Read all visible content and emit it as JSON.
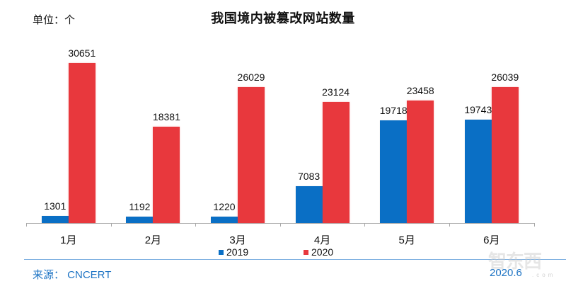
{
  "header": {
    "unit_label": "单位：个",
    "title": "我国境内被篡改网站数量"
  },
  "footer": {
    "source": "来源： CNCERT",
    "date": "2020.6",
    "watermark": "智东西",
    "watermark_sub": ".com"
  },
  "colors": {
    "series_2019": "#0a6fc5",
    "series_2020": "#e8383d",
    "footer_text": "#1e74c4",
    "footer_line": "#7aaee0"
  },
  "legend": [
    {
      "name": "2019",
      "color": "#0a6fc5"
    },
    {
      "name": "2020",
      "color": "#e8383d"
    }
  ],
  "chart_data": {
    "type": "bar",
    "title": "我国境内被篡改网站数量",
    "subtitle": "单位：个",
    "xlabel": "",
    "ylabel": "",
    "categories": [
      "1月",
      "2月",
      "3月",
      "4月",
      "5月",
      "6月"
    ],
    "series": [
      {
        "name": "2019",
        "color": "#0a6fc5",
        "values": [
          1301,
          1192,
          1220,
          7083,
          19718,
          19743
        ]
      },
      {
        "name": "2020",
        "color": "#e8383d",
        "values": [
          30651,
          18381,
          26029,
          23124,
          23458,
          26039
        ]
      }
    ],
    "ylim": [
      0,
      30651
    ],
    "grid": false,
    "legend_position": "bottom",
    "data_labels": true,
    "source": "来源： CNCERT",
    "date": "2020.6"
  }
}
